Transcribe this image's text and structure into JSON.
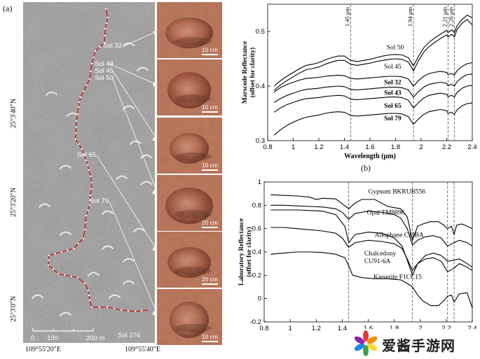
{
  "panel_a": {
    "label": "(a)",
    "sols": [
      "Sol 32",
      "Sol 43",
      "Sol 45",
      "Sol 50",
      "Sol 65",
      "Sol 79",
      "Sol 276"
    ],
    "lat_ticks": [
      "25°3'40\"N",
      "25°3'20\"N",
      "25°3'0\"N"
    ],
    "lon_ticks": [
      "109°55'20\"E",
      "109°55'40\"E"
    ],
    "scalebar": {
      "ticks": [
        "0",
        "100",
        "200 m"
      ]
    },
    "thumb_scales": [
      "10 cm",
      "10 cm",
      "10 cm",
      "20 cm",
      "20 cm",
      "10 cm"
    ],
    "colors": {
      "traverse": "#c0282d",
      "waypoint": "#ffffff"
    }
  },
  "panel_b": {
    "label": "(b)"
  },
  "chart_data": [
    {
      "type": "line",
      "title": "",
      "xlabel": "Wavelength (μm)",
      "ylabel": "Marscode Reflectance\n(offset for clarity)",
      "xlim": [
        0.8,
        2.4
      ],
      "ylim": [
        0.3,
        0.55
      ],
      "xticks": [
        "0.8",
        "1",
        "1.2",
        "1.4",
        "1.6",
        "1.8",
        "2",
        "2.2",
        "2.4"
      ],
      "yticks": [
        "0.3",
        "0.4",
        "0.5"
      ],
      "vlines": [
        {
          "x": 1.45,
          "label": "1.45 μm"
        },
        {
          "x": 1.94,
          "label": "1.94 μm"
        },
        {
          "x": 2.21,
          "label": "2.21 μm"
        },
        {
          "x": 2.26,
          "label": "2.26 μm"
        }
      ],
      "grid": false,
      "series": [
        {
          "name": "Sol 50",
          "bold": false,
          "x": [
            0.85,
            0.9,
            0.95,
            1.0,
            1.05,
            1.1,
            1.15,
            1.2,
            1.25,
            1.3,
            1.35,
            1.4,
            1.45,
            1.5,
            1.55,
            1.6,
            1.65,
            1.7,
            1.75,
            1.8,
            1.85,
            1.9,
            1.94,
            1.98,
            2.02,
            2.06,
            2.1,
            2.15,
            2.2,
            2.21,
            2.24,
            2.26,
            2.28,
            2.32,
            2.36,
            2.4
          ],
          "y": [
            0.4,
            0.41,
            0.418,
            0.425,
            0.432,
            0.438,
            0.44,
            0.443,
            0.448,
            0.452,
            0.455,
            0.455,
            0.447,
            0.445,
            0.447,
            0.449,
            0.452,
            0.455,
            0.457,
            0.458,
            0.457,
            0.452,
            0.437,
            0.455,
            0.47,
            0.48,
            0.487,
            0.495,
            0.502,
            0.498,
            0.503,
            0.498,
            0.51,
            0.522,
            0.53,
            0.525
          ]
        },
        {
          "name": "Sol 45",
          "bold": false,
          "x": [
            0.85,
            0.9,
            0.95,
            1.0,
            1.05,
            1.1,
            1.15,
            1.2,
            1.25,
            1.3,
            1.35,
            1.4,
            1.45,
            1.5,
            1.55,
            1.6,
            1.65,
            1.7,
            1.75,
            1.8,
            1.85,
            1.9,
            1.94,
            1.98,
            2.02,
            2.06,
            2.1,
            2.15,
            2.2,
            2.21,
            2.24,
            2.26,
            2.28,
            2.32,
            2.36,
            2.4
          ],
          "y": [
            0.392,
            0.402,
            0.41,
            0.417,
            0.424,
            0.43,
            0.432,
            0.435,
            0.44,
            0.444,
            0.447,
            0.447,
            0.44,
            0.438,
            0.44,
            0.442,
            0.445,
            0.447,
            0.449,
            0.45,
            0.449,
            0.444,
            0.428,
            0.447,
            0.462,
            0.472,
            0.479,
            0.487,
            0.494,
            0.49,
            0.495,
            0.49,
            0.503,
            0.515,
            0.522,
            0.512
          ]
        },
        {
          "name": "Sol 32",
          "bold": true,
          "x": [
            0.85,
            0.9,
            0.95,
            1.0,
            1.05,
            1.1,
            1.15,
            1.2,
            1.25,
            1.3,
            1.35,
            1.4,
            1.45,
            1.5,
            1.55,
            1.6,
            1.65,
            1.7,
            1.75,
            1.8,
            1.85,
            1.9,
            1.94,
            1.98,
            2.02,
            2.06,
            2.1,
            2.15,
            2.2,
            2.21,
            2.24,
            2.26,
            2.28,
            2.32,
            2.36,
            2.4
          ],
          "y": [
            0.389,
            0.397,
            0.403,
            0.407,
            0.411,
            0.414,
            0.415,
            0.416,
            0.418,
            0.419,
            0.42,
            0.419,
            0.414,
            0.413,
            0.414,
            0.415,
            0.416,
            0.417,
            0.418,
            0.418,
            0.417,
            0.413,
            0.4,
            0.41,
            0.418,
            0.423,
            0.425,
            0.427,
            0.425,
            0.421,
            0.423,
            0.42,
            0.428,
            0.436,
            0.441,
            0.443
          ]
        },
        {
          "name": "Sol 43",
          "bold": true,
          "x": [
            0.85,
            0.9,
            0.95,
            1.0,
            1.05,
            1.1,
            1.15,
            1.2,
            1.25,
            1.3,
            1.35,
            1.4,
            1.45,
            1.5,
            1.55,
            1.6,
            1.65,
            1.7,
            1.75,
            1.8,
            1.85,
            1.9,
            1.94,
            1.98,
            2.02,
            2.06,
            2.1,
            2.15,
            2.2,
            2.21,
            2.24,
            2.26,
            2.28,
            2.32,
            2.36,
            2.4
          ],
          "y": [
            0.37,
            0.377,
            0.383,
            0.387,
            0.391,
            0.394,
            0.395,
            0.396,
            0.398,
            0.399,
            0.4,
            0.399,
            0.394,
            0.393,
            0.394,
            0.395,
            0.396,
            0.397,
            0.398,
            0.398,
            0.397,
            0.393,
            0.38,
            0.39,
            0.398,
            0.403,
            0.405,
            0.407,
            0.405,
            0.401,
            0.403,
            0.4,
            0.408,
            0.416,
            0.421,
            0.422
          ]
        },
        {
          "name": "Sol 65",
          "bold": true,
          "x": [
            0.85,
            0.9,
            0.95,
            1.0,
            1.05,
            1.1,
            1.15,
            1.2,
            1.25,
            1.3,
            1.35,
            1.4,
            1.45,
            1.5,
            1.55,
            1.6,
            1.65,
            1.7,
            1.75,
            1.8,
            1.85,
            1.9,
            1.94,
            1.98,
            2.02,
            2.06,
            2.1,
            2.15,
            2.2,
            2.21,
            2.24,
            2.26,
            2.28,
            2.32,
            2.36,
            2.4
          ],
          "y": [
            0.352,
            0.36,
            0.366,
            0.37,
            0.374,
            0.377,
            0.378,
            0.379,
            0.381,
            0.382,
            0.383,
            0.382,
            0.376,
            0.375,
            0.376,
            0.377,
            0.378,
            0.379,
            0.38,
            0.38,
            0.379,
            0.374,
            0.36,
            0.37,
            0.378,
            0.383,
            0.385,
            0.387,
            0.385,
            0.381,
            0.383,
            0.38,
            0.388,
            0.396,
            0.4,
            0.401
          ]
        },
        {
          "name": "Sol 79",
          "bold": true,
          "x": [
            0.85,
            0.9,
            0.95,
            1.0,
            1.05,
            1.1,
            1.15,
            1.2,
            1.25,
            1.3,
            1.35,
            1.4,
            1.45,
            1.5,
            1.55,
            1.6,
            1.65,
            1.7,
            1.75,
            1.8,
            1.85,
            1.9,
            1.94,
            1.98,
            2.02,
            2.06,
            2.1,
            2.15,
            2.2,
            2.21,
            2.24,
            2.26,
            2.28,
            2.32,
            2.36,
            2.4
          ],
          "y": [
            0.31,
            0.32,
            0.328,
            0.334,
            0.339,
            0.343,
            0.345,
            0.347,
            0.35,
            0.352,
            0.353,
            0.352,
            0.346,
            0.345,
            0.346,
            0.347,
            0.348,
            0.349,
            0.35,
            0.35,
            0.349,
            0.344,
            0.33,
            0.34,
            0.348,
            0.353,
            0.355,
            0.357,
            0.355,
            0.35,
            0.352,
            0.348,
            0.356,
            0.364,
            0.368,
            0.369
          ]
        }
      ],
      "label_positions": [
        {
          "name": "Sol 50",
          "x": 1.73,
          "y": 0.467
        },
        {
          "name": "Sol 45",
          "x": 1.71,
          "y": 0.432
        },
        {
          "name": "Sol 32",
          "x": 1.71,
          "y": 0.403
        },
        {
          "name": "Sol 43",
          "x": 1.71,
          "y": 0.384
        },
        {
          "name": "Sol 65",
          "x": 1.71,
          "y": 0.36
        },
        {
          "name": "Sol 79",
          "x": 1.71,
          "y": 0.337
        }
      ]
    },
    {
      "type": "line",
      "title": "",
      "xlabel": "",
      "ylabel": "Laboratory Reflectance\n(offset for clarity)",
      "xlim": [
        0.8,
        2.4
      ],
      "ylim": [
        -0.2,
        1.0
      ],
      "xticks": [
        "0.8",
        "1",
        "1.2",
        "1.4",
        "1.6",
        "1.8",
        "2",
        "2.2",
        "2.4"
      ],
      "yticks": [
        "-0.2",
        "0",
        "0.2",
        "0.4",
        "0.6",
        "0.8",
        "1"
      ],
      "vlines": [
        {
          "x": 1.45
        },
        {
          "x": 1.94
        },
        {
          "x": 2.21
        },
        {
          "x": 2.26
        }
      ],
      "grid": false,
      "series": [
        {
          "name": "Gypsum BKRUB556",
          "x": [
            0.85,
            0.95,
            1.05,
            1.15,
            1.2,
            1.25,
            1.35,
            1.45,
            1.5,
            1.55,
            1.65,
            1.75,
            1.8,
            1.85,
            1.9,
            1.94,
            1.98,
            2.02,
            2.08,
            2.14,
            2.18,
            2.21,
            2.24,
            2.26,
            2.28,
            2.32,
            2.36,
            2.4
          ],
          "y": [
            0.89,
            0.885,
            0.88,
            0.87,
            0.85,
            0.86,
            0.855,
            0.77,
            0.82,
            0.85,
            0.85,
            0.79,
            0.78,
            0.77,
            0.7,
            0.5,
            0.62,
            0.64,
            0.66,
            0.66,
            0.63,
            0.6,
            0.62,
            0.55,
            0.63,
            0.64,
            0.62,
            0.6
          ]
        },
        {
          "name": "Opal TM8896",
          "x": [
            0.85,
            0.95,
            1.05,
            1.15,
            1.25,
            1.35,
            1.4,
            1.45,
            1.5,
            1.6,
            1.7,
            1.8,
            1.85,
            1.9,
            1.94,
            1.98,
            2.04,
            2.1,
            2.16,
            2.21,
            2.26,
            2.3,
            2.36,
            2.4
          ],
          "y": [
            0.8,
            0.8,
            0.795,
            0.79,
            0.785,
            0.77,
            0.74,
            0.68,
            0.73,
            0.75,
            0.74,
            0.72,
            0.69,
            0.6,
            0.46,
            0.5,
            0.53,
            0.54,
            0.52,
            0.45,
            0.48,
            0.5,
            0.48,
            0.45
          ]
        },
        {
          "name": "Allophane C1JBA",
          "x": [
            0.85,
            0.95,
            1.05,
            1.15,
            1.25,
            1.35,
            1.42,
            1.45,
            1.5,
            1.6,
            1.7,
            1.8,
            1.86,
            1.9,
            1.94,
            1.98,
            2.04,
            2.1,
            2.16,
            2.21,
            2.26,
            2.3,
            2.36,
            2.4
          ],
          "y": [
            0.76,
            0.76,
            0.76,
            0.755,
            0.75,
            0.72,
            0.62,
            0.48,
            0.55,
            0.57,
            0.56,
            0.52,
            0.45,
            0.33,
            0.2,
            0.3,
            0.37,
            0.39,
            0.37,
            0.32,
            0.33,
            0.34,
            0.3,
            0.27
          ]
        },
        {
          "name": "Chalcedony CU91-6A",
          "x": [
            0.85,
            0.95,
            1.05,
            1.15,
            1.25,
            1.35,
            1.4,
            1.45,
            1.5,
            1.6,
            1.7,
            1.8,
            1.86,
            1.9,
            1.94,
            1.98,
            2.04,
            2.1,
            2.16,
            2.21,
            2.26,
            2.3,
            2.36,
            2.4
          ],
          "y": [
            0.61,
            0.61,
            0.6,
            0.59,
            0.58,
            0.56,
            0.52,
            0.44,
            0.48,
            0.5,
            0.49,
            0.47,
            0.43,
            0.34,
            0.24,
            0.3,
            0.34,
            0.35,
            0.32,
            0.23,
            0.26,
            0.3,
            0.27,
            0.24
          ]
        },
        {
          "name": "Kieserite F1CC15",
          "x": [
            0.85,
            0.95,
            1.05,
            1.15,
            1.25,
            1.35,
            1.42,
            1.45,
            1.48,
            1.55,
            1.65,
            1.75,
            1.85,
            1.9,
            1.94,
            1.98,
            2.02,
            2.08,
            2.14,
            2.18,
            2.21,
            2.24,
            2.26,
            2.3,
            2.36,
            2.4
          ],
          "y": [
            0.38,
            0.39,
            0.4,
            0.4,
            0.395,
            0.38,
            0.35,
            0.28,
            0.2,
            0.18,
            0.17,
            0.17,
            0.16,
            0.13,
            0.1,
            0.03,
            -0.02,
            -0.06,
            -0.06,
            -0.02,
            0.02,
            0.03,
            -0.03,
            0.04,
            0.05,
            -0.08
          ]
        }
      ],
      "label_positions": [
        {
          "name": "Gypsum BKRUB556",
          "x": 1.6,
          "y": 0.9,
          "lines": [
            "Gypsum BKRUB556"
          ]
        },
        {
          "name": "Opal TM8896",
          "x": 1.59,
          "y": 0.72,
          "lines": [
            "Opal TM8896"
          ]
        },
        {
          "name": "Allophane C1JBA",
          "x": 1.65,
          "y": 0.53,
          "lines": [
            "Allophane C1JBA"
          ]
        },
        {
          "name": "Chalcedony CU91-6A",
          "x": 1.57,
          "y": 0.37,
          "lines": [
            "Chalcedony",
            "CU91-6A"
          ]
        },
        {
          "name": "Kieserite F1CC15",
          "x": 1.64,
          "y": 0.17,
          "lines": [
            "Kieserite F1CC15"
          ]
        }
      ]
    }
  ],
  "watermark": {
    "text": "爱酱手游网"
  }
}
